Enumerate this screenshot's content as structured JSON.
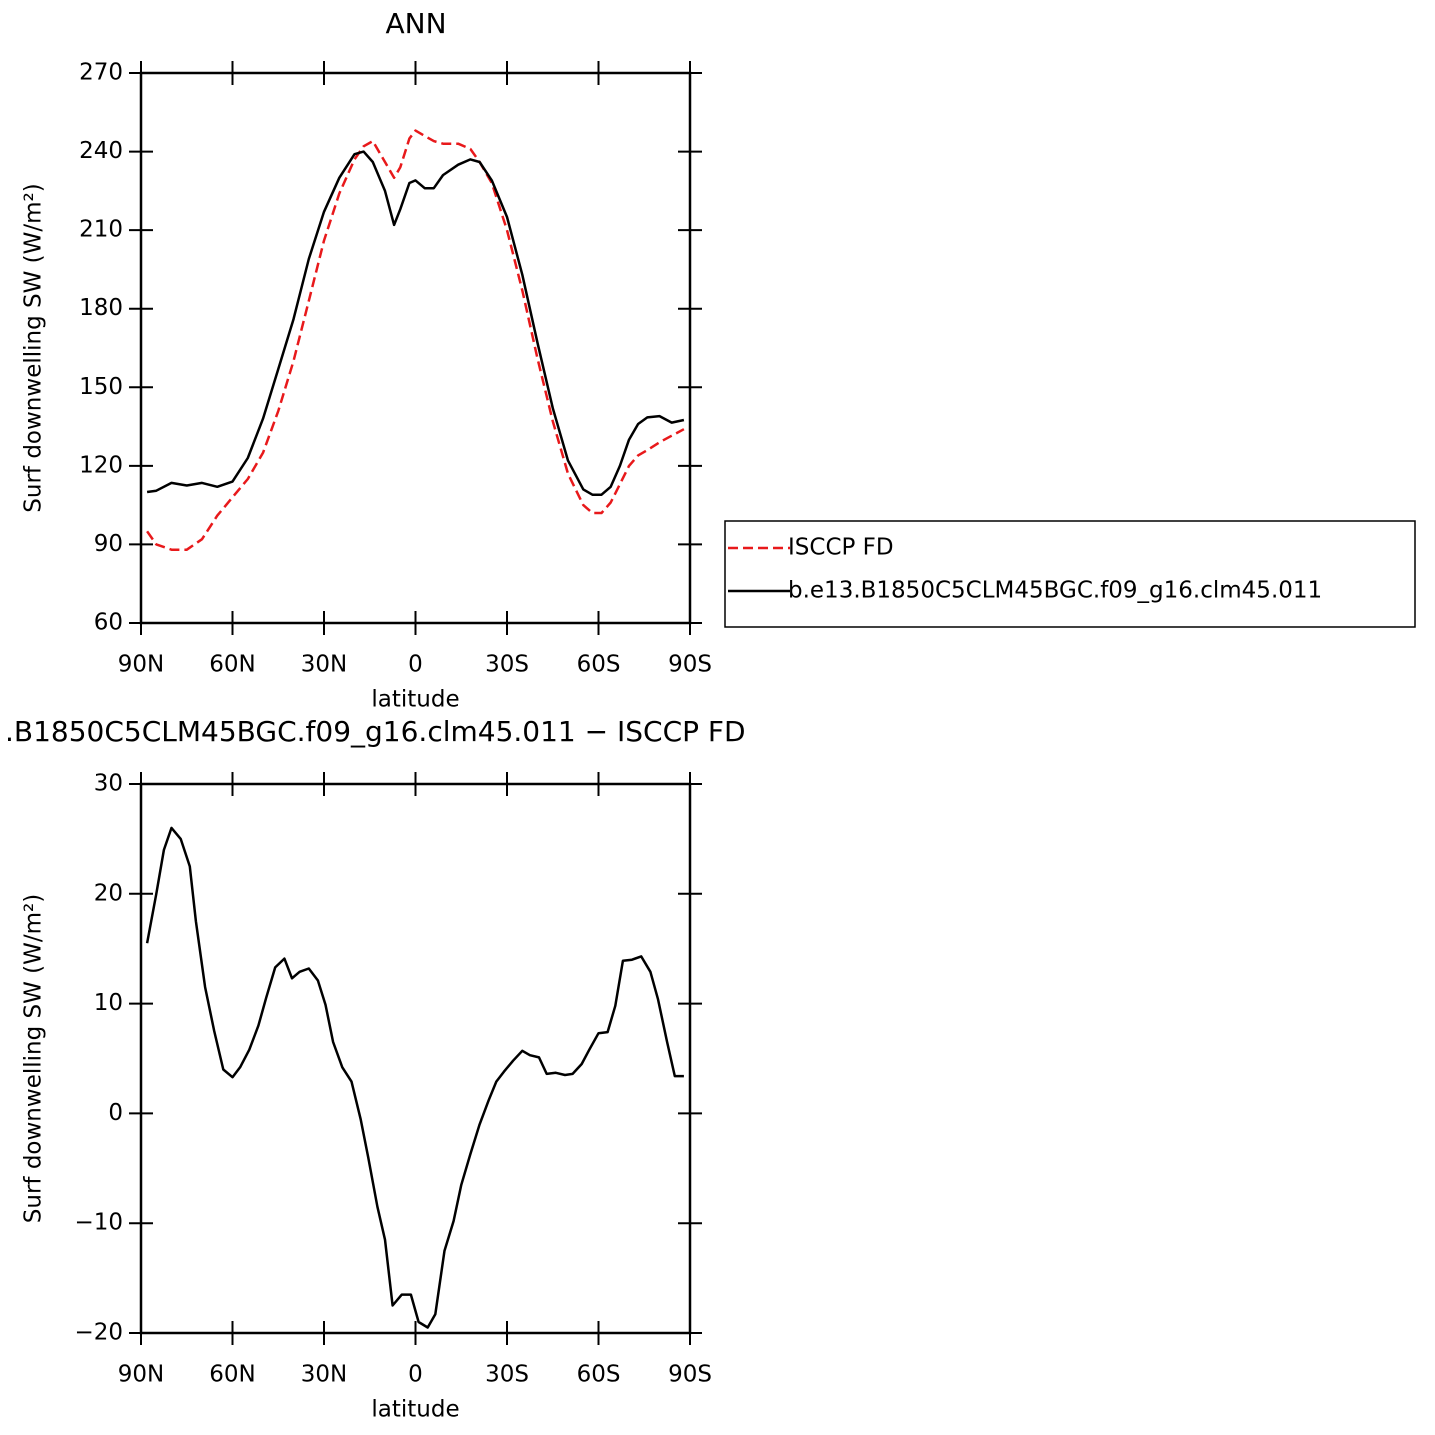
{
  "chart_data": [
    {
      "type": "line",
      "title": "ANN",
      "xlabel": "latitude",
      "ylabel": "Surf downwelling SW (W/m²)",
      "x": [
        88,
        85,
        80,
        75,
        70,
        65,
        60,
        55,
        50,
        45,
        40,
        35,
        30,
        25,
        20,
        17,
        14,
        10,
        7,
        5,
        2,
        0,
        -3,
        -6,
        -9,
        -14,
        -18,
        -21,
        -25,
        -30,
        -35,
        -40,
        -45,
        -50,
        -55,
        -58,
        -61,
        -64,
        -67,
        -70,
        -73,
        -76,
        -80,
        -84,
        -88
      ],
      "series": [
        {
          "name": "ISCCP FD",
          "color": "#e8191b",
          "line_style": "dashed",
          "values": [
            95,
            90,
            88,
            88,
            92,
            101,
            108,
            115,
            125,
            141,
            160,
            183,
            206,
            224,
            237,
            242,
            244,
            236,
            230,
            234,
            245,
            248,
            246,
            244,
            243,
            243,
            241,
            236,
            228,
            210,
            187,
            161,
            137,
            117,
            105,
            102,
            102,
            106,
            113,
            120,
            124,
            126,
            129,
            131.5,
            134
          ]
        },
        {
          "name": "b.e13.B1850C5CLM45BGC.f09_g16.clm45.011",
          "color": "#000000",
          "line_style": "solid",
          "values": [
            110,
            110.5,
            113.5,
            112.5,
            113.5,
            112,
            114,
            123,
            138,
            157,
            176,
            199,
            217,
            230,
            239,
            240,
            236,
            225,
            212,
            218,
            228,
            229,
            226,
            226,
            231,
            235,
            237,
            236,
            229,
            215,
            193,
            167,
            142,
            122,
            111,
            109,
            109,
            112,
            120,
            130,
            136,
            138.5,
            139,
            136.5,
            137.5
          ]
        }
      ],
      "xlim": [
        90,
        -90
      ],
      "xticks": [
        {
          "value": 90,
          "label": "90N"
        },
        {
          "value": 60,
          "label": "60N"
        },
        {
          "value": 30,
          "label": "30N"
        },
        0,
        {
          "value": -30,
          "label": "30S"
        },
        {
          "value": -60,
          "label": "60S"
        },
        {
          "value": -90,
          "label": "90S"
        }
      ],
      "ylim": [
        60,
        270
      ],
      "yticks": [
        60,
        90,
        120,
        150,
        180,
        210,
        240,
        270
      ],
      "legend_position": "right"
    },
    {
      "type": "line",
      "title": ".B1850C5CLM45BGC.f09_g16.clm45.011 − ISCCP FD",
      "xlabel": "latitude",
      "ylabel": "Surf downwelling SW (W/m²)",
      "x": [
        88,
        85,
        82.5,
        80,
        77,
        74,
        72,
        69,
        66,
        63,
        60,
        57.5,
        54.5,
        51.5,
        49,
        46,
        43,
        40.5,
        38,
        35,
        32,
        29.5,
        27,
        24,
        21,
        18,
        15.5,
        12.5,
        10,
        7.5,
        4.5,
        1.5,
        -1,
        -4,
        -6.5,
        -9.5,
        -12.5,
        -15,
        -18,
        -21,
        -24,
        -26.5,
        -29,
        -32,
        -35,
        -37.5,
        -40.5,
        -43,
        -46,
        -49,
        -51.5,
        -54.5,
        -57,
        -60,
        -63,
        -65.5,
        -68,
        -71,
        -74,
        -77,
        -79.5,
        -82.5,
        -85,
        -88
      ],
      "series": [
        {
          "color": "#000000",
          "line_style": "solid",
          "values": [
            15.5,
            20,
            24,
            26,
            25,
            22.5,
            17.5,
            11.5,
            7.5,
            4,
            3.3,
            4.2,
            5.8,
            8,
            10.5,
            13.3,
            14.1,
            12.3,
            12.9,
            13.2,
            12.1,
            9.9,
            6.5,
            4.2,
            2.9,
            -0.5,
            -4,
            -8.5,
            -11.5,
            -17.5,
            -16.5,
            -16.5,
            -19,
            -19.5,
            -18.3,
            -12.5,
            -9.8,
            -6.5,
            -3.7,
            -1,
            1.2,
            2.9,
            3.8,
            4.8,
            5.7,
            5.3,
            5.1,
            3.6,
            3.7,
            3.5,
            3.6,
            4.5,
            5.8,
            7.3,
            7.4,
            9.8,
            13.9,
            14,
            14.3,
            12.9,
            10.4,
            6.5,
            3.4,
            3.4
          ]
        }
      ],
      "xlim": [
        90,
        -90
      ],
      "xticks": [
        {
          "value": 90,
          "label": "90N"
        },
        {
          "value": 60,
          "label": "60N"
        },
        {
          "value": 30,
          "label": "30N"
        },
        0,
        {
          "value": -30,
          "label": "30S"
        },
        {
          "value": -60,
          "label": "60S"
        },
        {
          "value": -90,
          "label": "90S"
        }
      ],
      "ylim": [
        -20,
        30
      ],
      "yticks": [
        {
          "value": -20,
          "label": "−20"
        },
        {
          "value": -10,
          "label": "−10"
        },
        0,
        10,
        20,
        30
      ]
    }
  ]
}
